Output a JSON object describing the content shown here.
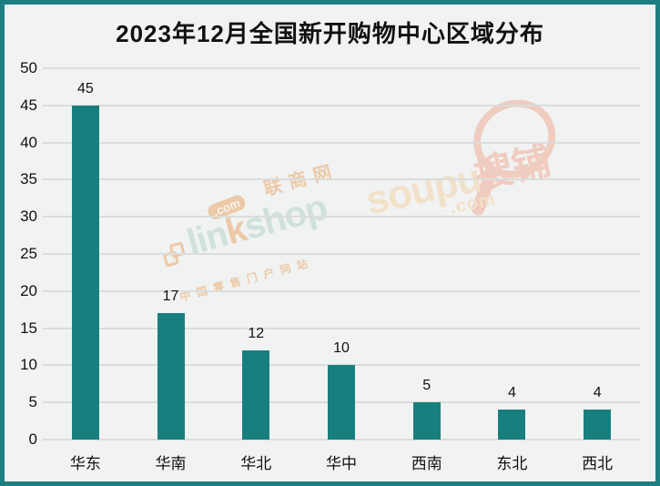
{
  "title": "2023年12月全国新开购物中心区域分布",
  "colors": {
    "bar": "#17807E",
    "frame_border": "#1D7F81",
    "background": "#F1F2F2",
    "gridline": "#DBDCDC",
    "text": "#111111",
    "watermark_orange": "#E8A96B",
    "watermark_green": "#B5D6C8",
    "watermark_salmon": "#EFAE96",
    "watermark_pale_orange": "#F4D4A8"
  },
  "chart_data": {
    "type": "bar",
    "title": "2023年12月全国新开购物中心区域分布",
    "categories": [
      "华东",
      "华南",
      "华北",
      "华中",
      "西南",
      "东北",
      "西北"
    ],
    "values": [
      45,
      17,
      12,
      10,
      5,
      4,
      4
    ],
    "value_labels": [
      "45",
      "17",
      "12",
      "10",
      "5",
      "4",
      "4"
    ],
    "xlabel": "",
    "ylabel": "",
    "ylim": [
      0,
      50
    ],
    "yticks": [
      0,
      5,
      10,
      15,
      20,
      25,
      30,
      35,
      40,
      45,
      50
    ],
    "grid": true,
    "legend": false,
    "bar_color": "#17807E"
  },
  "watermarks": {
    "linkshop": {
      "cn_name": "联商网",
      "dotcom": ".com",
      "brand_lin": "lin",
      "brand_k": "k",
      "brand_shop": "shop",
      "tagline": "中国零售门户网站"
    },
    "soupu": {
      "brand": "soupu",
      "dotcom": ".com",
      "cn_name": "搜铺"
    }
  }
}
